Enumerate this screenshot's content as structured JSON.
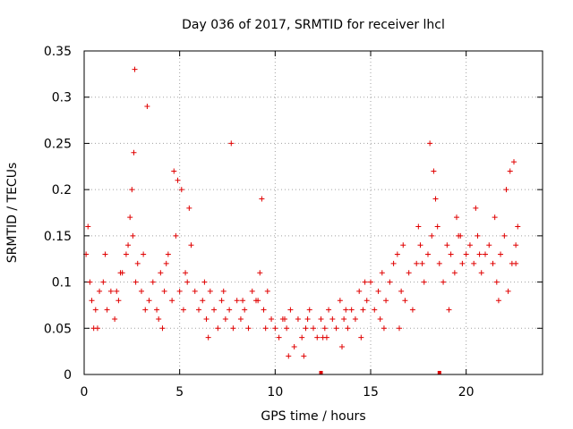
{
  "chart_data": {
    "type": "scatter",
    "title": "Day 036 of 2017, SRMTID for receiver lhcl",
    "xlabel": "GPS time / hours",
    "ylabel": "SRMTID / TECUs",
    "xlim": [
      0,
      24
    ],
    "ylim": [
      0,
      0.35
    ],
    "x_ticks": [
      "0",
      "5",
      "10",
      "15",
      "20"
    ],
    "y_ticks": [
      "0",
      "0.05",
      "0.1",
      "0.15",
      "0.2",
      "0.25",
      "0.3",
      "0.35"
    ],
    "grid": true,
    "marker": "plus",
    "series_color": "#e00000",
    "series": [
      {
        "x": [
          0.1,
          0.2,
          0.3,
          0.4,
          0.6,
          0.8,
          1.0,
          1.2,
          1.4,
          1.6,
          1.8,
          2.0,
          2.2,
          2.4,
          2.5,
          2.6,
          2.7,
          2.8,
          3.0,
          3.2,
          3.4,
          3.6,
          3.8,
          4.0,
          4.2,
          4.4,
          4.6,
          4.8,
          4.9,
          5.0,
          5.2,
          5.4,
          5.5,
          5.6,
          5.8,
          6.0,
          6.2,
          6.4,
          6.6,
          6.8,
          7.0,
          7.2,
          7.4,
          7.6,
          7.8,
          8.0,
          8.2,
          8.4,
          8.6,
          8.8,
          9.0,
          9.2,
          9.4,
          9.6,
          9.8,
          10.0,
          10.2,
          10.4,
          10.6,
          10.8,
          11.0,
          11.2,
          11.4,
          11.6,
          11.8,
          12.0,
          12.2,
          12.4,
          12.6,
          12.8,
          13.0,
          13.2,
          13.4,
          13.6,
          13.8,
          14.0,
          14.2,
          14.4,
          14.6,
          14.8,
          15.0,
          15.2,
          15.4,
          15.6,
          15.8,
          16.0,
          16.2,
          16.4,
          16.6,
          16.8,
          17.0,
          17.2,
          17.4,
          17.6,
          17.8,
          18.0,
          18.2,
          18.4,
          18.6,
          18.8,
          19.0,
          19.2,
          19.4,
          19.6,
          19.8,
          20.0,
          20.2,
          20.4,
          20.6,
          20.8,
          21.0,
          21.2,
          21.4,
          21.6,
          21.8,
          22.0,
          22.2,
          22.4,
          22.6,
          22.7,
          0.5,
          1.1,
          1.7,
          2.3,
          2.55,
          2.65,
          3.3,
          4.1,
          4.7,
          5.1,
          5.3,
          6.5,
          7.7,
          9.1,
          9.3,
          10.5,
          11.5,
          12.5,
          13.5,
          14.5,
          15.5,
          16.5,
          17.7,
          18.1,
          18.3,
          18.5,
          19.5,
          20.5,
          21.5,
          22.1,
          22.3,
          22.5,
          0.7,
          1.9,
          3.1,
          3.9,
          4.3,
          6.3,
          7.3,
          8.3,
          9.5,
          10.7,
          11.7,
          12.7,
          13.7,
          14.7,
          15.7,
          16.7,
          17.5,
          19.1,
          19.7,
          20.7,
          21.7,
          22.6
        ],
        "y": [
          0.13,
          0.16,
          0.1,
          0.08,
          0.07,
          0.09,
          0.1,
          0.07,
          0.09,
          0.06,
          0.08,
          0.11,
          0.13,
          0.17,
          0.2,
          0.24,
          0.1,
          0.12,
          0.09,
          0.07,
          0.08,
          0.1,
          0.07,
          0.11,
          0.09,
          0.13,
          0.08,
          0.15,
          0.21,
          0.09,
          0.07,
          0.1,
          0.18,
          0.14,
          0.09,
          0.07,
          0.08,
          0.06,
          0.09,
          0.07,
          0.05,
          0.08,
          0.06,
          0.07,
          0.05,
          0.08,
          0.06,
          0.07,
          0.05,
          0.09,
          0.08,
          0.11,
          0.07,
          0.09,
          0.06,
          0.05,
          0.04,
          0.06,
          0.05,
          0.07,
          0.03,
          0.06,
          0.04,
          0.05,
          0.07,
          0.05,
          0.04,
          0.06,
          0.05,
          0.07,
          0.06,
          0.05,
          0.08,
          0.06,
          0.05,
          0.07,
          0.06,
          0.09,
          0.07,
          0.08,
          0.1,
          0.07,
          0.09,
          0.11,
          0.08,
          0.1,
          0.12,
          0.13,
          0.09,
          0.08,
          0.11,
          0.07,
          0.12,
          0.14,
          0.1,
          0.13,
          0.15,
          0.19,
          0.12,
          0.1,
          0.14,
          0.13,
          0.11,
          0.15,
          0.12,
          0.13,
          0.14,
          0.12,
          0.15,
          0.11,
          0.13,
          0.14,
          0.12,
          0.1,
          0.13,
          0.15,
          0.09,
          0.12,
          0.14,
          0.16,
          0.05,
          0.13,
          0.09,
          0.14,
          0.15,
          0.33,
          0.29,
          0.05,
          0.22,
          0.2,
          0.11,
          0.04,
          0.25,
          0.08,
          0.19,
          0.06,
          0.02,
          0.04,
          0.03,
          0.04,
          0.06,
          0.05,
          0.12,
          0.25,
          0.22,
          0.16,
          0.17,
          0.18,
          0.17,
          0.2,
          0.22,
          0.23,
          0.05,
          0.11,
          0.13,
          0.06,
          0.12,
          0.1,
          0.09,
          0.08,
          0.05,
          0.02,
          0.06,
          0.04,
          0.07,
          0.1,
          0.05,
          0.14,
          0.16,
          0.07,
          0.15,
          0.13,
          0.08,
          0.12
        ]
      }
    ],
    "markers_on_axis": [
      12.4,
      18.6
    ]
  }
}
